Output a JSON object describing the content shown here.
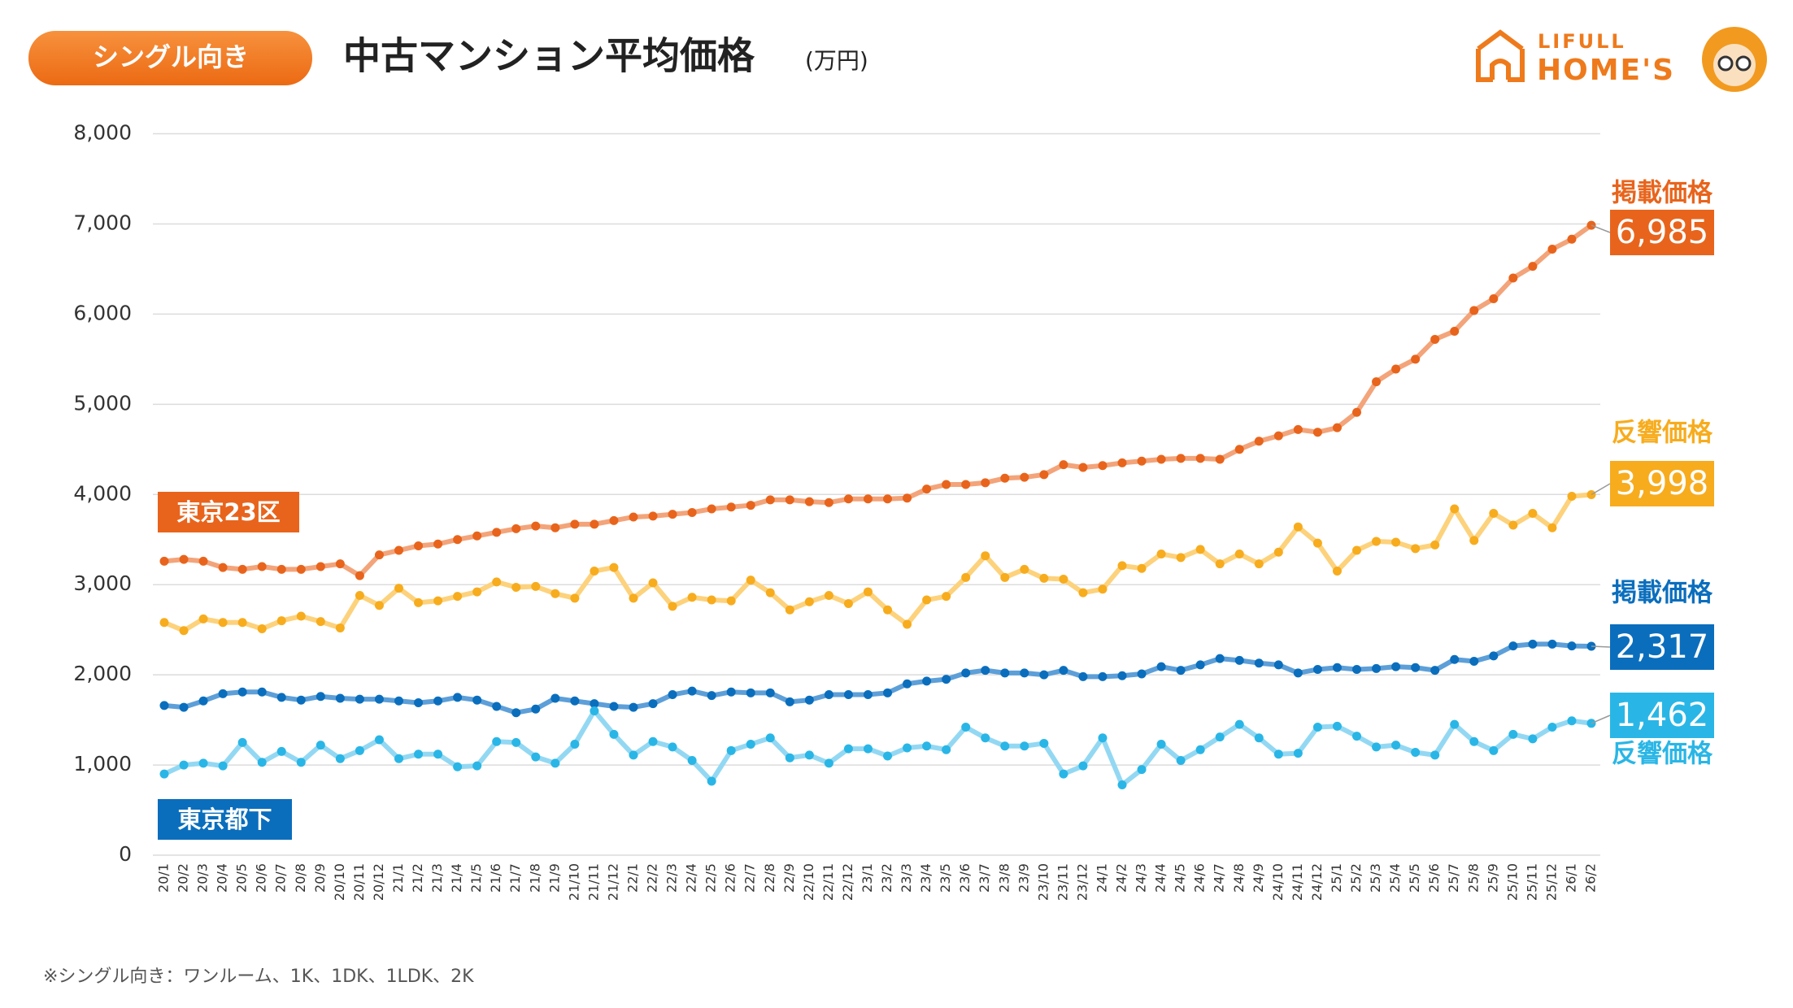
{
  "header": {
    "tag": "シングル向き",
    "logo_top": "LIFULL",
    "logo_bottom": "HOME'S"
  },
  "chart_data": {
    "type": "line",
    "title": "中古マンション平均価格",
    "subtitle": "(万円)",
    "note": "※シングル向き：ワンルーム、1K、1DK、1LDK、2K",
    "categories": [
      "20/1",
      "20/2",
      "20/3",
      "20/4",
      "20/5",
      "20/6",
      "20/7",
      "20/8",
      "20/9",
      "20/10",
      "20/11",
      "20/12",
      "21/1",
      "21/2",
      "21/3",
      "21/4",
      "21/5",
      "21/6",
      "21/7",
      "21/8",
      "21/9",
      "21/10",
      "21/11",
      "21/12",
      "22/1",
      "22/2",
      "22/3",
      "22/4",
      "22/5",
      "22/6",
      "22/7",
      "22/8",
      "22/9",
      "22/10",
      "22/11",
      "22/12",
      "23/1",
      "23/2",
      "23/3",
      "23/4",
      "23/5",
      "23/6",
      "23/7",
      "23/8",
      "23/9",
      "23/10",
      "23/11",
      "23/12",
      "24/1",
      "24/2",
      "24/3",
      "24/4",
      "24/5",
      "24/6",
      "24/7",
      "24/8",
      "24/9",
      "24/10",
      "24/11",
      "24/12",
      "25/1",
      "25/2",
      "25/3",
      "25/4",
      "25/5",
      "25/6",
      "25/7",
      "25/8",
      "25/9",
      "25/10",
      "25/11",
      "25/12",
      "26/1",
      "26/2"
    ],
    "ylim": [
      0,
      8000
    ],
    "yticks": [
      0,
      {
        "value": 1000,
        "label": "1,000"
      },
      {
        "value": 2000,
        "label": "2,000"
      },
      {
        "value": 3000,
        "label": "3,000"
      },
      {
        "value": 4000,
        "label": "4,000"
      },
      {
        "value": 5000,
        "label": "5,000"
      },
      {
        "value": 6000,
        "label": "6,000"
      },
      {
        "value": 7000,
        "label": "7,000"
      },
      {
        "value": 8000,
        "label": "8,000"
      }
    ],
    "grid": true,
    "annotations": [
      {
        "text": "東京23区",
        "color": "#e8641c"
      },
      {
        "text": "東京都下",
        "color": "#0a6ebd"
      }
    ],
    "series": [
      {
        "name": "掲載価格",
        "color": "#e8641c",
        "values": [
          3260,
          3280,
          3260,
          3190,
          3170,
          3200,
          3170,
          3170,
          3200,
          3230,
          3100,
          3330,
          3380,
          3430,
          3450,
          3500,
          3540,
          3580,
          3620,
          3650,
          3630,
          3670,
          3670,
          3710,
          3750,
          3760,
          3780,
          3800,
          3840,
          3860,
          3880,
          3940,
          3940,
          3920,
          3910,
          3950,
          3950,
          3950,
          3960,
          4060,
          4110,
          4110,
          4130,
          4180,
          4190,
          4220,
          4330,
          4300,
          4320,
          4350,
          4370,
          4390,
          4400,
          4400,
          4390,
          4500,
          4590,
          4650,
          4720,
          4690,
          4740,
          4910,
          5250,
          5390,
          5500,
          5720,
          5810,
          6040,
          6170,
          6400,
          6530,
          6720,
          6830,
          6985
        ],
        "value_labels": [
          null,
          null,
          null,
          null,
          null,
          null,
          null,
          null,
          null,
          null,
          null,
          null,
          null,
          null,
          null,
          null,
          null,
          null,
          null,
          null,
          null,
          null,
          null,
          null,
          null,
          null,
          null,
          null,
          null,
          null,
          null,
          null,
          null,
          null,
          null,
          null,
          null,
          null,
          null,
          null,
          null,
          null,
          null,
          null,
          null,
          null,
          null,
          null,
          null,
          null,
          null,
          null,
          null,
          null,
          null,
          null,
          null,
          null,
          null,
          null,
          null,
          null,
          null,
          null,
          null,
          null,
          null,
          null,
          null,
          null,
          null,
          null,
          null,
          "6,985"
        ]
      },
      {
        "name": "反響価格",
        "color": "#f7ac1e",
        "values": [
          2580,
          2490,
          2620,
          2580,
          2580,
          2510,
          2600,
          2650,
          2590,
          2520,
          2880,
          2770,
          2960,
          2800,
          2820,
          2870,
          2920,
          3030,
          2970,
          2980,
          2900,
          2850,
          3150,
          3190,
          2850,
          3020,
          2760,
          2860,
          2830,
          2820,
          3050,
          2910,
          2720,
          2810,
          2880,
          2790,
          2920,
          2720,
          2560,
          2830,
          2870,
          3080,
          3320,
          3080,
          3170,
          3070,
          3060,
          2910,
          2950,
          3210,
          3180,
          3340,
          3300,
          3390,
          3230,
          3340,
          3230,
          3360,
          3640,
          3460,
          3150,
          3380,
          3480,
          3470,
          3400,
          3440,
          3840,
          3490,
          3790,
          3660,
          3790,
          3630,
          3980,
          3998
        ],
        "value_labels": [
          null,
          null,
          null,
          null,
          null,
          null,
          null,
          null,
          null,
          null,
          null,
          null,
          null,
          null,
          null,
          null,
          null,
          null,
          null,
          null,
          null,
          null,
          null,
          null,
          null,
          null,
          null,
          null,
          null,
          null,
          null,
          null,
          null,
          null,
          null,
          null,
          null,
          null,
          null,
          null,
          null,
          null,
          null,
          null,
          null,
          null,
          null,
          null,
          null,
          null,
          null,
          null,
          null,
          null,
          null,
          null,
          null,
          null,
          null,
          null,
          null,
          null,
          null,
          null,
          null,
          null,
          null,
          null,
          null,
          null,
          null,
          null,
          null,
          "3,998"
        ]
      },
      {
        "name": "掲載価格",
        "color": "#0a6ebd",
        "values": [
          1660,
          1640,
          1710,
          1790,
          1810,
          1810,
          1750,
          1720,
          1760,
          1740,
          1730,
          1730,
          1710,
          1690,
          1710,
          1750,
          1720,
          1650,
          1580,
          1620,
          1740,
          1710,
          1680,
          1650,
          1640,
          1680,
          1780,
          1820,
          1770,
          1810,
          1800,
          1800,
          1700,
          1720,
          1780,
          1780,
          1780,
          1800,
          1900,
          1930,
          1950,
          2020,
          2050,
          2020,
          2020,
          2000,
          2050,
          1980,
          1980,
          1990,
          2010,
          2090,
          2050,
          2110,
          2180,
          2160,
          2130,
          2110,
          2020,
          2060,
          2080,
          2060,
          2070,
          2090,
          2080,
          2050,
          2170,
          2150,
          2210,
          2320,
          2340,
          2340,
          2320,
          2317
        ],
        "value_labels": [
          null,
          null,
          null,
          null,
          null,
          null,
          null,
          null,
          null,
          null,
          null,
          null,
          null,
          null,
          null,
          null,
          null,
          null,
          null,
          null,
          null,
          null,
          null,
          null,
          null,
          null,
          null,
          null,
          null,
          null,
          null,
          null,
          null,
          null,
          null,
          null,
          null,
          null,
          null,
          null,
          null,
          null,
          null,
          null,
          null,
          null,
          null,
          null,
          null,
          null,
          null,
          null,
          null,
          null,
          null,
          null,
          null,
          null,
          null,
          null,
          null,
          null,
          null,
          null,
          null,
          null,
          null,
          null,
          null,
          null,
          null,
          null,
          null,
          "2,317"
        ]
      },
      {
        "name": "反響価格",
        "color": "#29b6e6",
        "values": [
          900,
          1000,
          1020,
          990,
          1250,
          1030,
          1150,
          1030,
          1220,
          1070,
          1160,
          1280,
          1070,
          1120,
          1120,
          980,
          990,
          1260,
          1250,
          1090,
          1020,
          1230,
          1600,
          1340,
          1110,
          1260,
          1200,
          1050,
          820,
          1160,
          1230,
          1300,
          1080,
          1110,
          1020,
          1180,
          1180,
          1100,
          1190,
          1210,
          1170,
          1420,
          1300,
          1210,
          1210,
          1240,
          900,
          990,
          1300,
          780,
          950,
          1230,
          1050,
          1170,
          1310,
          1450,
          1300,
          1120,
          1130,
          1420,
          1430,
          1320,
          1200,
          1220,
          1140,
          1110,
          1450,
          1260,
          1160,
          1340,
          1290,
          1420,
          1490,
          1462
        ],
        "value_labels": [
          null,
          null,
          null,
          null,
          null,
          null,
          null,
          null,
          null,
          null,
          null,
          null,
          null,
          null,
          null,
          null,
          null,
          null,
          null,
          null,
          null,
          null,
          null,
          null,
          null,
          null,
          null,
          null,
          null,
          null,
          null,
          null,
          null,
          null,
          null,
          null,
          null,
          null,
          null,
          null,
          null,
          null,
          null,
          null,
          null,
          null,
          null,
          null,
          null,
          null,
          null,
          null,
          null,
          null,
          null,
          null,
          null,
          null,
          null,
          null,
          null,
          null,
          null,
          null,
          null,
          null,
          null,
          null,
          null,
          null,
          null,
          null,
          null,
          "1,462"
        ]
      }
    ]
  }
}
